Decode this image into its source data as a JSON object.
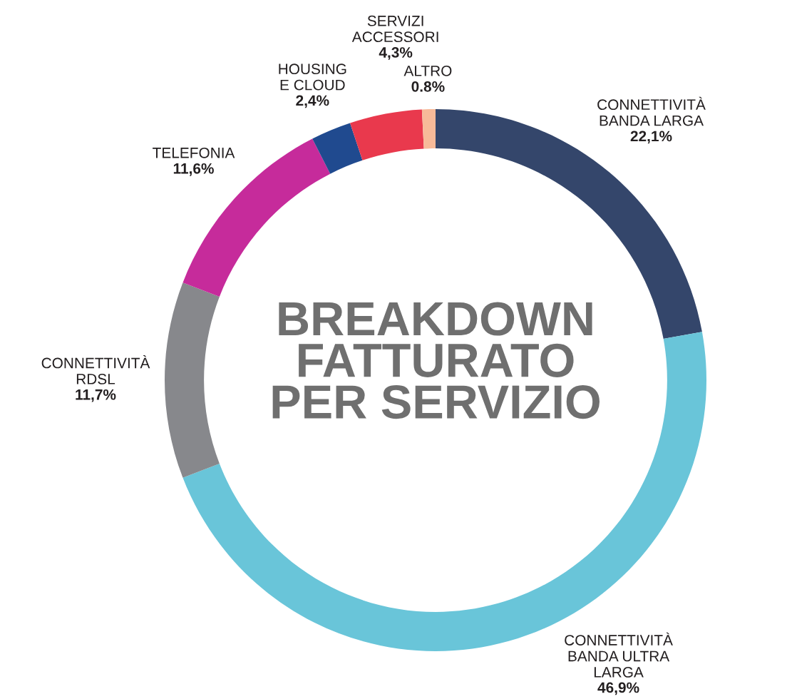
{
  "chart_data": {
    "type": "donut",
    "title": "BREAKDOWN\nFATTURATO\nPER SERVIZIO",
    "categories": [
      "CONNETTIVITÀ\nBANDA LARGA",
      "CONNETTIVITÀ\nBANDA ULTRA\nLARGA",
      "CONNETTIVITÀ\nRDSL",
      "TELEFONIA",
      "HOUSING\nE CLOUD",
      "SERVIZI\nACCESSORI",
      "ALTRO"
    ],
    "values": [
      22.1,
      46.9,
      11.7,
      11.6,
      2.4,
      4.3,
      0.8
    ],
    "colors": [
      "#34466b",
      "#69c5d9",
      "#87888c",
      "#c62b9b",
      "#204a8f",
      "#e9394d",
      "#f7ba99"
    ],
    "value_labels": [
      "22,1%",
      "46,9%",
      "11,7%",
      "11,6%",
      "2,4%",
      "4,3%",
      "0.8%"
    ]
  }
}
